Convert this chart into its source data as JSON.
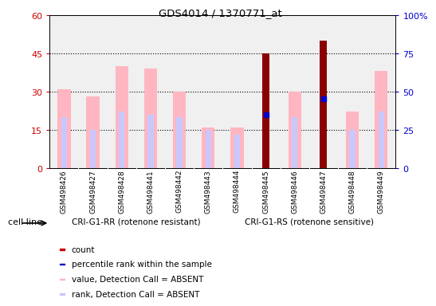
{
  "title": "GDS4014 / 1370771_at",
  "samples": [
    "GSM498426",
    "GSM498427",
    "GSM498428",
    "GSM498441",
    "GSM498442",
    "GSM498443",
    "GSM498444",
    "GSM498445",
    "GSM498446",
    "GSM498447",
    "GSM498448",
    "GSM498449"
  ],
  "value_bars": [
    31,
    28,
    40,
    39,
    30,
    16,
    16,
    45,
    30,
    50,
    22,
    38
  ],
  "rank_bars": [
    20,
    15,
    22,
    21,
    20,
    15,
    13,
    21,
    20,
    27,
    15,
    22
  ],
  "count_bars": [
    null,
    null,
    null,
    null,
    null,
    null,
    null,
    45,
    null,
    50,
    null,
    null
  ],
  "percentile_dots": [
    20,
    15,
    22,
    21,
    20,
    15,
    13,
    21,
    20,
    27,
    15,
    22
  ],
  "is_count": [
    false,
    false,
    false,
    false,
    false,
    false,
    false,
    true,
    false,
    true,
    false,
    false
  ],
  "group1_label": "CRI-G1-RR (rotenone resistant)",
  "group2_label": "CRI-G1-RS (rotenone sensitive)",
  "group1_samples": 6,
  "group2_samples": 6,
  "ylim_left": [
    0,
    60
  ],
  "ylim_right": [
    0,
    100
  ],
  "yticks_left": [
    0,
    15,
    30,
    45,
    60
  ],
  "yticks_right": [
    0,
    25,
    50,
    75,
    100
  ],
  "ytick_labels_right": [
    "0",
    "25",
    "50",
    "75",
    "100%"
  ],
  "bar_width": 0.45,
  "value_color": "#FFB6C1",
  "rank_color": "#C8C8FF",
  "count_color": "#8B0000",
  "percentile_color": "#0000CD",
  "cell_line_label": "cell line",
  "legend_items": [
    {
      "color": "#CC0000",
      "label": "count"
    },
    {
      "color": "#0000CD",
      "label": "percentile rank within the sample"
    },
    {
      "color": "#FFB6C1",
      "label": "value, Detection Call = ABSENT"
    },
    {
      "color": "#C8C8FF",
      "label": "rank, Detection Call = ABSENT"
    }
  ],
  "plot_bg": "#F0F0F0",
  "left_tick_color": "#CC0000",
  "right_tick_color": "#0000CC",
  "group1_color": "#90EE90",
  "group2_color": "#32CD32"
}
